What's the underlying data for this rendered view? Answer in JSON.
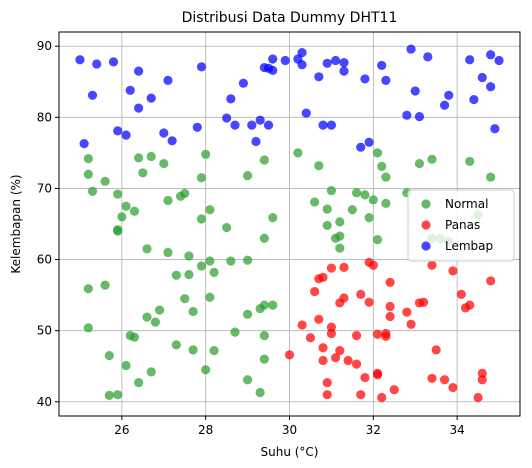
{
  "chart_data": {
    "type": "scatter",
    "title": "Distribusi Data Dummy DHT11",
    "xlabel": "Suhu (°C)",
    "ylabel": "Kelembapan (%)",
    "xlim": [
      24.5,
      35.5
    ],
    "ylim": [
      38,
      92
    ],
    "xticks": [
      26,
      28,
      30,
      32,
      34
    ],
    "yticks": [
      40,
      50,
      60,
      70,
      80,
      90
    ],
    "grid": true,
    "legend_position": "center-right",
    "series": [
      {
        "name": "Normal",
        "color": "#2ca02c",
        "points": [
          [
            25.2,
            74.2
          ],
          [
            25.2,
            72.0
          ],
          [
            25.3,
            69.6
          ],
          [
            25.6,
            71.0
          ],
          [
            25.9,
            69.2
          ],
          [
            25.9,
            64.2
          ],
          [
            26.0,
            66.0
          ],
          [
            25.9,
            64.0
          ],
          [
            26.1,
            67.5
          ],
          [
            26.3,
            66.8
          ],
          [
            26.4,
            74.3
          ],
          [
            26.5,
            72.2
          ],
          [
            26.7,
            74.5
          ],
          [
            27.0,
            73.5
          ],
          [
            27.1,
            68.3
          ],
          [
            27.4,
            68.9
          ],
          [
            27.5,
            69.3
          ],
          [
            27.6,
            60.5
          ],
          [
            28.0,
            74.8
          ],
          [
            27.9,
            71.5
          ],
          [
            27.9,
            65.7
          ],
          [
            28.1,
            67.0
          ],
          [
            28.5,
            64.5
          ],
          [
            29.0,
            71.8
          ],
          [
            29.4,
            74.0
          ],
          [
            29.4,
            63.0
          ],
          [
            29.6,
            65.9
          ],
          [
            25.6,
            56.4
          ],
          [
            25.2,
            55.9
          ],
          [
            25.2,
            50.4
          ],
          [
            25.7,
            46.5
          ],
          [
            25.7,
            40.9
          ],
          [
            25.9,
            41.0
          ],
          [
            26.1,
            45.1
          ],
          [
            26.2,
            49.3
          ],
          [
            26.3,
            49.1
          ],
          [
            26.4,
            42.7
          ],
          [
            26.6,
            51.9
          ],
          [
            26.6,
            61.5
          ],
          [
            26.7,
            44.2
          ],
          [
            26.8,
            51.2
          ],
          [
            26.9,
            52.9
          ],
          [
            27.1,
            61.0
          ],
          [
            27.3,
            57.8
          ],
          [
            27.3,
            48.0
          ],
          [
            27.5,
            54.5
          ],
          [
            27.6,
            57.9
          ],
          [
            27.7,
            52.7
          ],
          [
            27.7,
            47.3
          ],
          [
            27.9,
            59.1
          ],
          [
            28.0,
            44.5
          ],
          [
            28.1,
            59.8
          ],
          [
            28.1,
            54.7
          ],
          [
            28.2,
            58.2
          ],
          [
            28.2,
            47.2
          ],
          [
            28.6,
            59.8
          ],
          [
            28.7,
            49.8
          ],
          [
            29.0,
            59.9
          ],
          [
            29.0,
            52.3
          ],
          [
            29.0,
            43.1
          ],
          [
            29.3,
            53.1
          ],
          [
            29.3,
            41.3
          ],
          [
            29.4,
            53.6
          ],
          [
            29.4,
            49.3
          ],
          [
            29.4,
            46.0
          ],
          [
            29.6,
            53.6
          ],
          [
            30.2,
            75.0
          ],
          [
            30.6,
            68.1
          ],
          [
            30.7,
            73.2
          ],
          [
            30.9,
            67.1
          ],
          [
            30.9,
            64.8
          ],
          [
            31.0,
            69.7
          ],
          [
            31.1,
            63.0
          ],
          [
            31.2,
            63.3
          ],
          [
            31.2,
            65.3
          ],
          [
            31.2,
            61.6
          ],
          [
            31.5,
            67.0
          ],
          [
            31.6,
            69.4
          ],
          [
            31.8,
            69.1
          ],
          [
            31.9,
            65.9
          ],
          [
            32.0,
            68.4
          ],
          [
            32.1,
            75.0
          ],
          [
            32.1,
            62.8
          ],
          [
            32.2,
            73.1
          ],
          [
            32.3,
            71.6
          ],
          [
            32.3,
            67.9
          ],
          [
            32.8,
            69.4
          ],
          [
            33.1,
            73.5
          ],
          [
            33.4,
            74.1
          ],
          [
            33.4,
            63.0
          ],
          [
            33.6,
            62.9
          ],
          [
            33.8,
            62.6
          ],
          [
            34.3,
            73.8
          ],
          [
            34.5,
            66.3
          ],
          [
            34.8,
            71.6
          ]
        ]
      },
      {
        "name": "Panas",
        "color": "#ff0000",
        "points": [
          [
            30.0,
            46.6
          ],
          [
            30.3,
            50.8
          ],
          [
            30.5,
            49.0
          ],
          [
            30.6,
            55.5
          ],
          [
            30.7,
            51.6
          ],
          [
            30.7,
            57.3
          ],
          [
            30.8,
            57.5
          ],
          [
            30.8,
            47.6
          ],
          [
            30.8,
            45.8
          ],
          [
            30.9,
            42.7
          ],
          [
            30.9,
            41.0
          ],
          [
            31.0,
            49.6
          ],
          [
            31.0,
            58.8
          ],
          [
            31.0,
            50.5
          ],
          [
            31.1,
            46.2
          ],
          [
            31.2,
            53.9
          ],
          [
            31.2,
            47.2
          ],
          [
            31.3,
            58.9
          ],
          [
            31.3,
            54.6
          ],
          [
            31.4,
            45.8
          ],
          [
            31.6,
            49.3
          ],
          [
            31.6,
            45.3
          ],
          [
            31.7,
            55.1
          ],
          [
            31.7,
            41.0
          ],
          [
            31.8,
            43.4
          ],
          [
            31.9,
            59.6
          ],
          [
            31.9,
            54.0
          ],
          [
            32.0,
            59.2
          ],
          [
            32.1,
            49.5
          ],
          [
            32.1,
            43.8
          ],
          [
            32.1,
            44.0
          ],
          [
            32.2,
            40.6
          ],
          [
            32.3,
            49.2
          ],
          [
            32.3,
            49.6
          ],
          [
            32.4,
            56.8
          ],
          [
            32.4,
            53.4
          ],
          [
            32.4,
            52.0
          ],
          [
            32.5,
            41.7
          ],
          [
            32.8,
            52.6
          ],
          [
            32.9,
            50.9
          ],
          [
            33.1,
            53.9
          ],
          [
            33.2,
            54.0
          ],
          [
            33.4,
            59.2
          ],
          [
            33.4,
            43.3
          ],
          [
            33.5,
            47.3
          ],
          [
            33.7,
            43.1
          ],
          [
            33.9,
            58.4
          ],
          [
            33.9,
            42.0
          ],
          [
            34.1,
            55.1
          ],
          [
            34.2,
            53.2
          ],
          [
            34.3,
            53.6
          ],
          [
            34.5,
            40.6
          ],
          [
            34.6,
            43.1
          ],
          [
            34.6,
            44.0
          ],
          [
            34.8,
            57.0
          ]
        ]
      },
      {
        "name": "Lembap",
        "color": "#0000ff",
        "points": [
          [
            25.0,
            88.1
          ],
          [
            25.1,
            76.3
          ],
          [
            25.3,
            83.1
          ],
          [
            25.4,
            87.5
          ],
          [
            25.8,
            87.8
          ],
          [
            25.9,
            78.1
          ],
          [
            26.1,
            77.5
          ],
          [
            26.2,
            83.8
          ],
          [
            26.4,
            81.3
          ],
          [
            26.4,
            86.5
          ],
          [
            26.7,
            82.7
          ],
          [
            27.0,
            77.8
          ],
          [
            27.1,
            85.2
          ],
          [
            27.2,
            76.7
          ],
          [
            27.8,
            78.6
          ],
          [
            27.9,
            87.1
          ],
          [
            28.5,
            79.9
          ],
          [
            28.6,
            82.6
          ],
          [
            28.7,
            78.9
          ],
          [
            28.9,
            84.8
          ],
          [
            29.1,
            78.9
          ],
          [
            29.2,
            76.6
          ],
          [
            29.3,
            79.6
          ],
          [
            29.4,
            87.0
          ],
          [
            29.5,
            78.9
          ],
          [
            29.5,
            86.9
          ],
          [
            29.6,
            86.6
          ],
          [
            29.6,
            88.2
          ],
          [
            29.9,
            88.0
          ],
          [
            30.2,
            88.2
          ],
          [
            30.3,
            89.1
          ],
          [
            30.3,
            87.4
          ],
          [
            30.4,
            80.6
          ],
          [
            30.7,
            85.7
          ],
          [
            30.8,
            78.9
          ],
          [
            30.9,
            87.6
          ],
          [
            31.0,
            78.9
          ],
          [
            31.1,
            88.0
          ],
          [
            31.3,
            86.5
          ],
          [
            31.3,
            87.7
          ],
          [
            31.7,
            75.8
          ],
          [
            31.8,
            85.4
          ],
          [
            31.9,
            76.5
          ],
          [
            32.2,
            87.3
          ],
          [
            32.3,
            85.2
          ],
          [
            32.8,
            80.3
          ],
          [
            32.9,
            89.6
          ],
          [
            33.0,
            83.7
          ],
          [
            33.1,
            80.1
          ],
          [
            33.3,
            88.5
          ],
          [
            33.7,
            81.7
          ],
          [
            33.8,
            83.1
          ],
          [
            34.3,
            88.1
          ],
          [
            34.4,
            82.5
          ],
          [
            34.6,
            85.6
          ],
          [
            34.8,
            88.8
          ],
          [
            34.8,
            84.3
          ],
          [
            34.9,
            78.4
          ],
          [
            35.0,
            88.0
          ]
        ]
      }
    ]
  }
}
